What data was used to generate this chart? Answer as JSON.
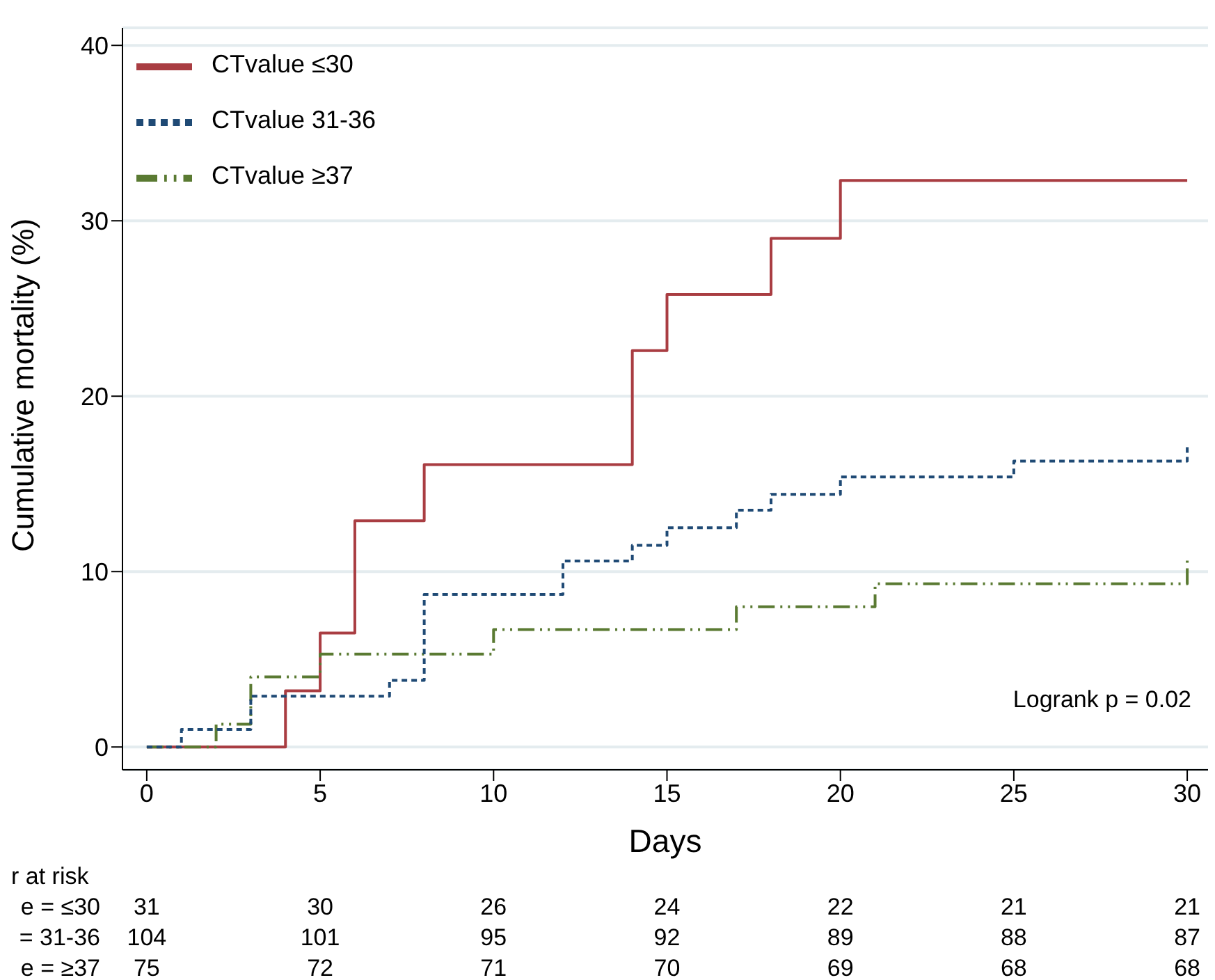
{
  "chart_data": {
    "type": "step",
    "xlabel": "Days",
    "ylabel": "Cumulative mortality (%)",
    "xlim": [
      -0.7,
      30.6
    ],
    "xticks": [
      0,
      5,
      10,
      15,
      20,
      25,
      30
    ],
    "ylim": [
      -1.3,
      41
    ],
    "yticks": [
      0,
      10,
      20,
      30,
      40
    ],
    "grid": "y",
    "legend": "top left",
    "marker": "none",
    "series": [
      {
        "name": "CTvalue ≤30",
        "color": "#a93d42",
        "line_style": "solid",
        "x": [
          0,
          4,
          5,
          6,
          8,
          14,
          15,
          18,
          20,
          30
        ],
        "values": [
          0,
          3.2,
          6.5,
          12.9,
          16.1,
          22.6,
          25.8,
          29.0,
          32.3,
          32.3
        ]
      },
      {
        "name": "CTvalue 31-36",
        "color": "#1f4a75",
        "line_style": "dashed",
        "x": [
          0,
          1,
          3,
          7,
          8,
          12,
          14,
          15,
          17,
          18,
          20,
          25,
          30
        ],
        "values": [
          0,
          1.0,
          2.9,
          3.8,
          8.7,
          10.6,
          11.5,
          12.5,
          13.5,
          14.4,
          15.4,
          16.3,
          17.3
        ]
      },
      {
        "name": "CTvalue ≥37",
        "color": "#5a7a32",
        "line_style": "dashdot",
        "x": [
          0,
          2,
          3,
          5,
          10,
          17,
          21,
          30
        ],
        "values": [
          0,
          1.3,
          4.0,
          5.3,
          6.7,
          8.0,
          9.3,
          10.7
        ]
      }
    ],
    "annotations": [
      "Logrank p = 0.02",
      "r at risk",
      "e = ≤30",
      "= 31-36",
      "e = ≥37",
      "31",
      "30",
      "26",
      "24",
      "22",
      "21",
      "21",
      "104",
      "101",
      "95",
      "92",
      "89",
      "88",
      "87",
      "75",
      "72",
      "71",
      "70",
      "69",
      "68",
      "68"
    ]
  }
}
